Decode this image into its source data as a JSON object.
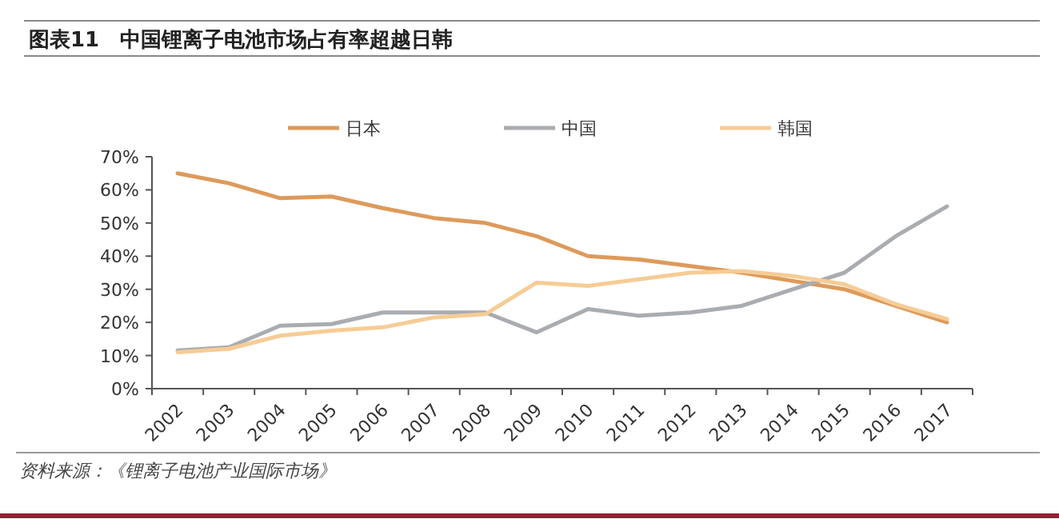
{
  "chart_data": {
    "type": "line",
    "title": "图表11　中国锂离子电池市场占有率超越日韩",
    "categories": [
      "2002",
      "2003",
      "2004",
      "2005",
      "2006",
      "2007",
      "2008",
      "2009",
      "2010",
      "2011",
      "2012",
      "2013",
      "2014",
      "2015",
      "2016",
      "2017"
    ],
    "series": [
      {
        "name": "日本",
        "color": "#dd9a5b",
        "values": [
          65,
          62,
          57.5,
          58,
          54.5,
          51.5,
          50,
          46,
          40,
          39,
          37,
          35,
          32.5,
          30,
          25,
          20
        ]
      },
      {
        "name": "中国",
        "color": "#a9acb0",
        "values": [
          11.5,
          12.5,
          19,
          19.5,
          23,
          23,
          23,
          17,
          24,
          22,
          23,
          25,
          30,
          35,
          46,
          55
        ]
      },
      {
        "name": "韩国",
        "color": "#f6cc96",
        "values": [
          11,
          12,
          16,
          17.5,
          18.5,
          21.5,
          22.5,
          32,
          31,
          33,
          35,
          35.5,
          34,
          31.5,
          25.5,
          21
        ]
      }
    ],
    "ylim": [
      0,
      70
    ],
    "yticks": [
      {
        "value": 0,
        "label": "0%"
      },
      {
        "value": 10,
        "label": "10%"
      },
      {
        "value": 20,
        "label": "20%"
      },
      {
        "value": 30,
        "label": "30%"
      },
      {
        "value": 40,
        "label": "40%"
      },
      {
        "value": 50,
        "label": "50%"
      },
      {
        "value": 60,
        "label": "60%"
      },
      {
        "value": 70,
        "label": "70%"
      }
    ],
    "legend": "top",
    "line_style": "solid",
    "annotations": [
      "资料来源：《锂离子电池产业国际市场》"
    ]
  }
}
